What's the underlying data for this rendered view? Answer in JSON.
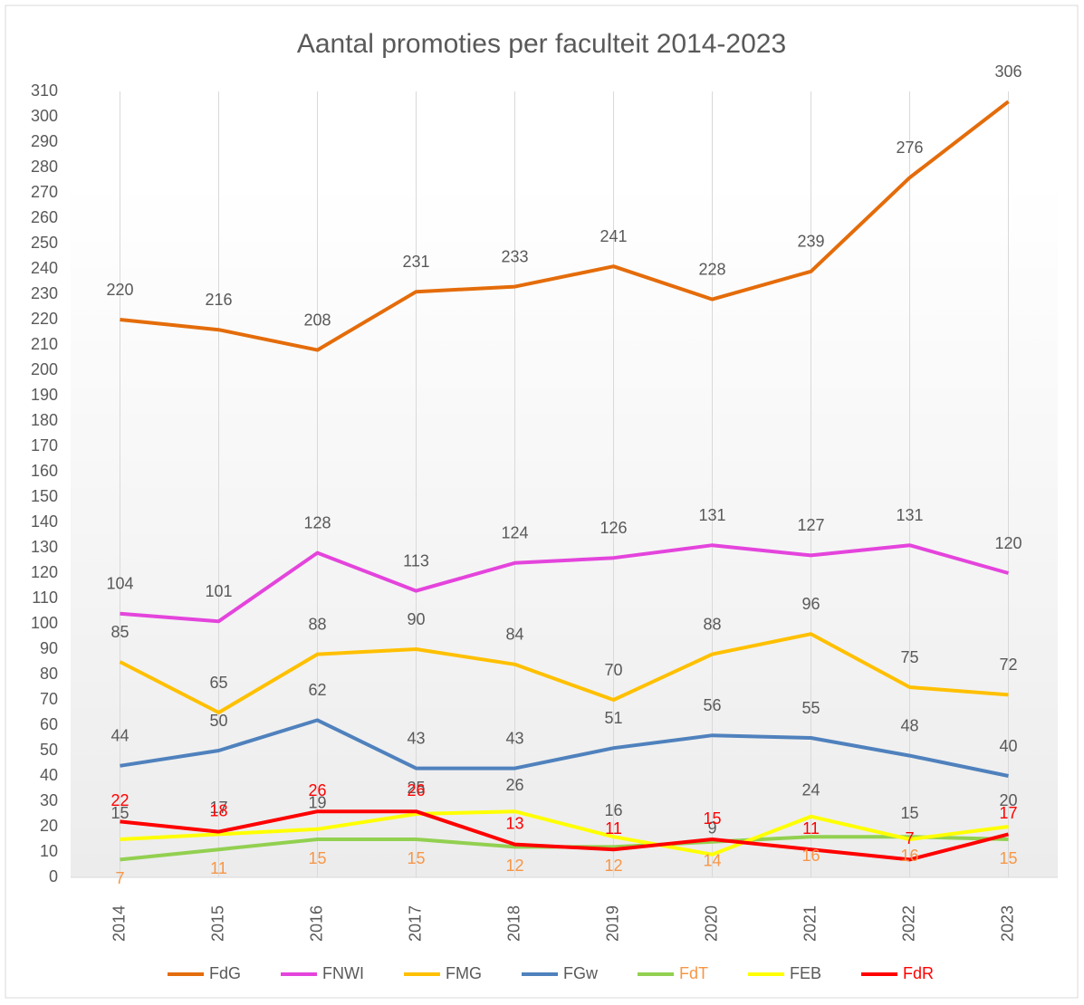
{
  "chart_data": {
    "type": "line",
    "title": "Aantal promoties per faculteit 2014-2023",
    "categories": [
      "2014",
      "2015",
      "2016",
      "2017",
      "2018",
      "2019",
      "2020",
      "2021",
      "2022",
      "2023"
    ],
    "series": [
      {
        "name": "FdG",
        "color": "#e46c0a",
        "label_color": "#595959",
        "values": [
          220,
          216,
          208,
          231,
          233,
          241,
          228,
          239,
          276,
          306
        ]
      },
      {
        "name": "FNWI",
        "color": "#e444dc",
        "label_color": "#595959",
        "values": [
          104,
          101,
          128,
          113,
          124,
          126,
          131,
          127,
          131,
          120
        ]
      },
      {
        "name": "FMG",
        "color": "#ffc000",
        "label_color": "#595959",
        "values": [
          85,
          65,
          88,
          90,
          84,
          70,
          88,
          96,
          75,
          72
        ]
      },
      {
        "name": "FGw",
        "color": "#4f81bd",
        "label_color": "#595959",
        "values": [
          44,
          50,
          62,
          43,
          43,
          51,
          56,
          55,
          48,
          40
        ]
      },
      {
        "name": "FdT",
        "color": "#92d050",
        "label_color": "#f79646",
        "values": [
          7,
          11,
          15,
          15,
          12,
          12,
          14,
          16,
          16,
          15
        ]
      },
      {
        "name": "FEB",
        "color": "#ffff00",
        "label_color": "#595959",
        "values": [
          15,
          17,
          19,
          25,
          26,
          16,
          9,
          24,
          15,
          20
        ]
      },
      {
        "name": "FdR",
        "color": "#ff0000",
        "label_color": "#ff0000",
        "values": [
          22,
          18,
          26,
          26,
          13,
          11,
          15,
          11,
          7,
          17
        ]
      }
    ],
    "ylim": [
      0,
      310
    ],
    "yticks": [
      0,
      10,
      20,
      30,
      40,
      50,
      60,
      70,
      80,
      90,
      100,
      110,
      120,
      130,
      140,
      150,
      160,
      170,
      180,
      190,
      200,
      210,
      220,
      230,
      240,
      250,
      260,
      270,
      280,
      290,
      300,
      310
    ],
    "grid": "vertical",
    "legend": "bottom"
  }
}
